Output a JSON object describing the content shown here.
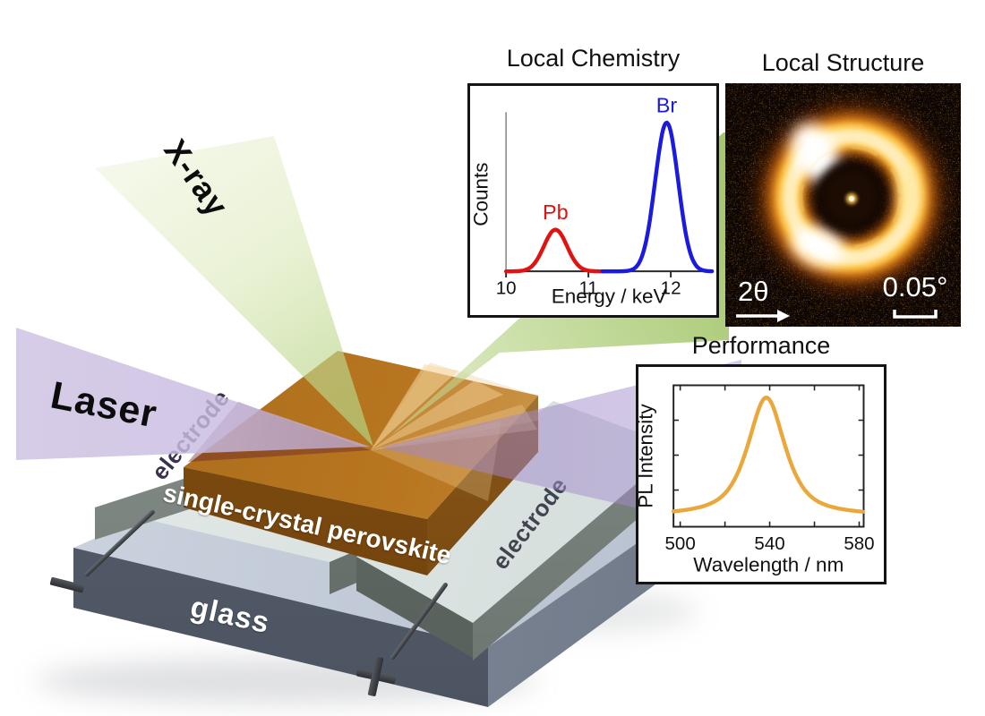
{
  "scene": {
    "xray_label": "X-ray",
    "laser_label": "Laser",
    "electrode_left_label": "electrode",
    "electrode_right_label": "electrode",
    "crystal_label": "single-crystal perovskite",
    "glass_label": "glass",
    "negative_terminal_symbol": "−",
    "positive_terminal_symbol": "+"
  },
  "panels": {
    "chemistry": {
      "title": "Local Chemistry"
    },
    "structure": {
      "title": "Local Structure",
      "angle_label": "2θ",
      "scale_label": "0.05°"
    },
    "performance": {
      "title": "Performance"
    }
  },
  "chart_data": [
    {
      "id": "xrf",
      "type": "line",
      "title": "Local Chemistry",
      "xlabel": "Energy / keV",
      "ylabel": "Counts",
      "xlim": [
        10,
        12.5
      ],
      "xticks": [
        10,
        11,
        12
      ],
      "grid": false,
      "legend": "none",
      "series": [
        {
          "name": "Pb",
          "color": "#e01212",
          "peak_center_keV": 10.6,
          "sigma_keV": 0.14,
          "amplitude": 0.28,
          "x_range": [
            10.0,
            11.17
          ]
        },
        {
          "name": "Br",
          "color": "#1a1ae0",
          "peak_center_keV": 11.95,
          "sigma_keV": 0.14,
          "amplitude": 1.0,
          "x_range": [
            11.17,
            12.5
          ]
        }
      ]
    },
    {
      "id": "pl",
      "type": "line",
      "title": "Performance",
      "xlabel": "Wavelength / nm",
      "ylabel": "PL Intensity",
      "xlim": [
        497,
        582
      ],
      "xticks": [
        500,
        540,
        580
      ],
      "xticks_minor": [
        500,
        520,
        540,
        560,
        580
      ],
      "grid": false,
      "legend": "none",
      "series": [
        {
          "name": "PL emission",
          "color": "#eaa83c",
          "peak_center_nm": 538.5,
          "fwhm_nm": 20,
          "amplitude": 1.0
        }
      ]
    }
  ],
  "colors": {
    "xray_beam": "#8dc152",
    "laser_beam": "#a48cc8",
    "crystal": "#bd7b22",
    "electrode": "#e2e9e7",
    "glass_front": "#5a6270",
    "pb_curve": "#e01212",
    "br_curve": "#1a1ae0",
    "pl_curve": "#eaa83c",
    "diffraction_ring": "#ffc947"
  }
}
